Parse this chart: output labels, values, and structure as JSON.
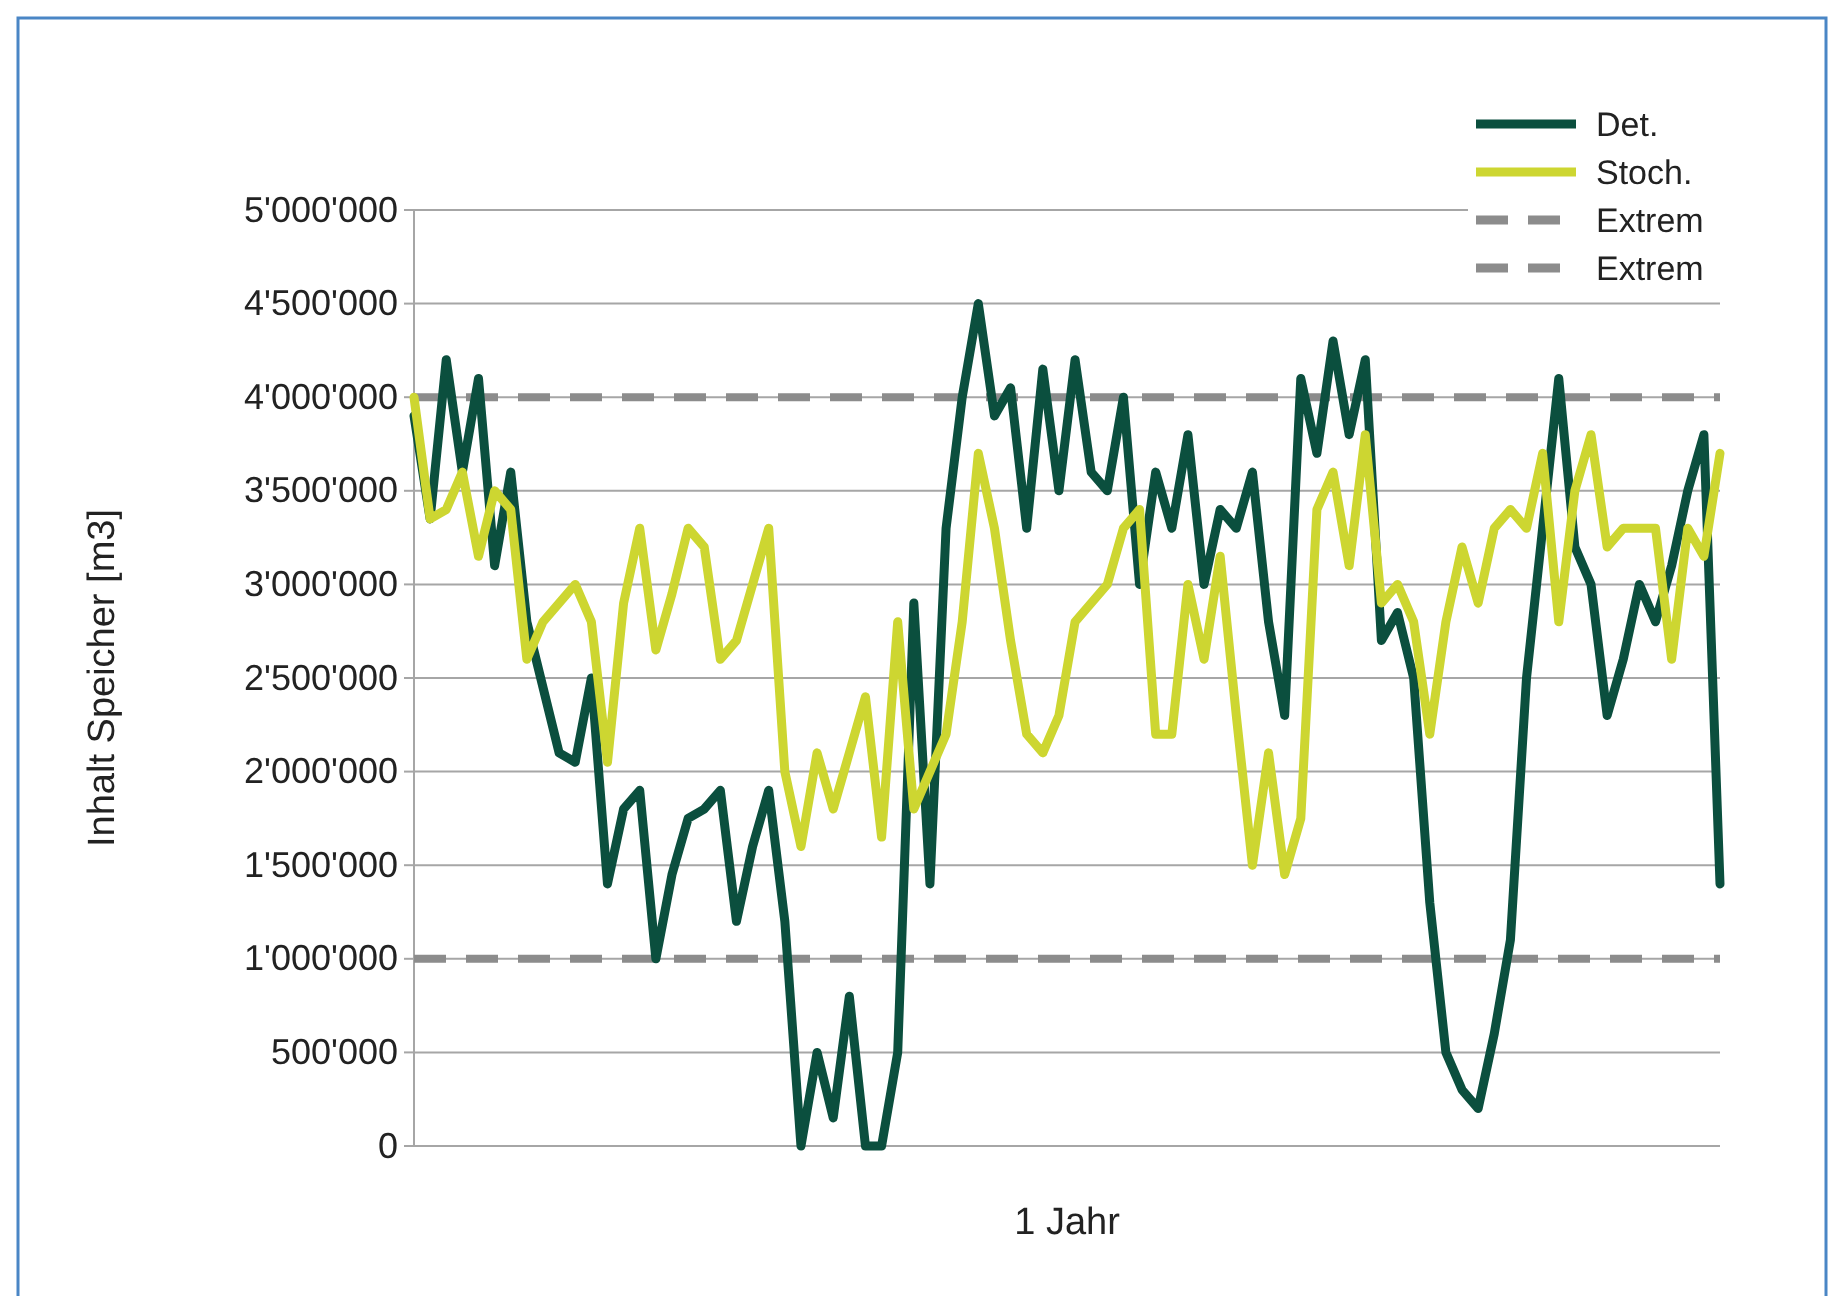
{
  "chart_data": {
    "type": "line",
    "xlabel": "1 Jahr",
    "ylabel": "Inhalt Speicher [m3]",
    "ylim": [
      0,
      5000000
    ],
    "yticks": [
      {
        "value": 0,
        "label": "0"
      },
      {
        "value": 500000,
        "label": "500'000"
      },
      {
        "value": 1000000,
        "label": "1'000'000"
      },
      {
        "value": 1500000,
        "label": "1'500'000"
      },
      {
        "value": 2000000,
        "label": "2'000'000"
      },
      {
        "value": 2500000,
        "label": "2'500'000"
      },
      {
        "value": 3000000,
        "label": "3'000'000"
      },
      {
        "value": 3500000,
        "label": "3'500'000"
      },
      {
        "value": 4000000,
        "label": "4'000'000"
      },
      {
        "value": 4500000,
        "label": "4'500'000"
      },
      {
        "value": 5000000,
        "label": "5'000'000"
      }
    ],
    "grid": "y",
    "legend": "top right",
    "tick_labels": "y",
    "marker": "none",
    "categories": [
      null,
      null,
      null,
      null,
      null,
      null,
      null,
      null,
      null,
      null,
      null,
      null,
      null,
      null,
      null,
      null,
      null,
      null,
      null,
      null,
      null,
      null,
      null,
      null,
      null,
      null,
      null,
      null,
      null,
      null,
      null,
      null,
      null,
      null,
      null,
      null,
      null,
      null,
      null,
      null,
      null,
      null,
      null,
      null,
      null,
      null,
      null,
      null,
      null,
      null,
      null,
      null,
      null,
      null,
      null,
      null,
      null,
      null,
      null,
      null,
      null,
      null,
      null,
      null,
      null,
      null,
      null,
      null,
      null,
      null,
      null,
      null,
      null,
      null,
      null,
      null,
      null,
      null,
      null,
      null,
      null,
      null
    ],
    "series": [
      {
        "name": "Det.",
        "color": "#0b4f3e",
        "line_style": "solid",
        "values": [
          3900000,
          3350000,
          4200000,
          3600000,
          4100000,
          3100000,
          3600000,
          2800000,
          2450000,
          2100000,
          2050000,
          2500000,
          1400000,
          1800000,
          1900000,
          1000000,
          1450000,
          1750000,
          1800000,
          1900000,
          1200000,
          1600000,
          1900000,
          1200000,
          0,
          500000,
          150000,
          800000,
          0,
          0,
          500000,
          2900000,
          1400000,
          3300000,
          4000000,
          4500000,
          3900000,
          4050000,
          3300000,
          4150000,
          3500000,
          4200000,
          3600000,
          3500000,
          4000000,
          3000000,
          3600000,
          3300000,
          3800000,
          3000000,
          3400000,
          3300000,
          3600000,
          2800000,
          2300000,
          4100000,
          3700000,
          4300000,
          3800000,
          4200000,
          2700000,
          2850000,
          2500000,
          1300000,
          500000,
          300000,
          200000,
          600000,
          1100000,
          2500000,
          3300000,
          4100000,
          3200000,
          3000000,
          2300000,
          2600000,
          3000000,
          2800000,
          3100000,
          3500000,
          3800000,
          1400000
        ]
      },
      {
        "name": "Stoch.",
        "color": "#cdd631",
        "line_style": "solid",
        "values": [
          4000000,
          3350000,
          3400000,
          3600000,
          3150000,
          3500000,
          3400000,
          2600000,
          2800000,
          2900000,
          3000000,
          2800000,
          2050000,
          2900000,
          3300000,
          2650000,
          2950000,
          3300000,
          3200000,
          2600000,
          2700000,
          3000000,
          3300000,
          2000000,
          1600000,
          2100000,
          1800000,
          2100000,
          2400000,
          1650000,
          2800000,
          1800000,
          2000000,
          2200000,
          2800000,
          3700000,
          3300000,
          2700000,
          2200000,
          2100000,
          2300000,
          2800000,
          2900000,
          3000000,
          3300000,
          3400000,
          2200000,
          2200000,
          3000000,
          2600000,
          3150000,
          2300000,
          1500000,
          2100000,
          1450000,
          1750000,
          3400000,
          3600000,
          3100000,
          3800000,
          2900000,
          3000000,
          2800000,
          2200000,
          2800000,
          3200000,
          2900000,
          3300000,
          3400000,
          3300000,
          3700000,
          2800000,
          3500000,
          3800000,
          3200000,
          3300000,
          3300000,
          3300000,
          2600000,
          3300000,
          3150000,
          3700000
        ]
      },
      {
        "name": "Extrem",
        "color": "#8c8c8c",
        "line_style": "dashed",
        "values": [
          4000000,
          4000000,
          4000000,
          4000000,
          4000000,
          4000000,
          4000000,
          4000000,
          4000000,
          4000000,
          4000000,
          4000000,
          4000000,
          4000000,
          4000000,
          4000000,
          4000000,
          4000000,
          4000000,
          4000000,
          4000000,
          4000000,
          4000000,
          4000000,
          4000000,
          4000000,
          4000000,
          4000000,
          4000000,
          4000000,
          4000000,
          4000000,
          4000000,
          4000000,
          4000000,
          4000000,
          4000000,
          4000000,
          4000000,
          4000000,
          4000000,
          4000000,
          4000000,
          4000000,
          4000000,
          4000000,
          4000000,
          4000000,
          4000000,
          4000000,
          4000000,
          4000000,
          4000000,
          4000000,
          4000000,
          4000000,
          4000000,
          4000000,
          4000000,
          4000000,
          4000000,
          4000000,
          4000000,
          4000000,
          4000000,
          4000000,
          4000000,
          4000000,
          4000000,
          4000000,
          4000000,
          4000000,
          4000000,
          4000000,
          4000000,
          4000000,
          4000000,
          4000000,
          4000000,
          4000000,
          4000000,
          4000000
        ]
      },
      {
        "name": "Extrem",
        "color": "#8c8c8c",
        "line_style": "dashed",
        "values": [
          1000000,
          1000000,
          1000000,
          1000000,
          1000000,
          1000000,
          1000000,
          1000000,
          1000000,
          1000000,
          1000000,
          1000000,
          1000000,
          1000000,
          1000000,
          1000000,
          1000000,
          1000000,
          1000000,
          1000000,
          1000000,
          1000000,
          1000000,
          1000000,
          1000000,
          1000000,
          1000000,
          1000000,
          1000000,
          1000000,
          1000000,
          1000000,
          1000000,
          1000000,
          1000000,
          1000000,
          1000000,
          1000000,
          1000000,
          1000000,
          1000000,
          1000000,
          1000000,
          1000000,
          1000000,
          1000000,
          1000000,
          1000000,
          1000000,
          1000000,
          1000000,
          1000000,
          1000000,
          1000000,
          1000000,
          1000000,
          1000000,
          1000000,
          1000000,
          1000000,
          1000000,
          1000000,
          1000000,
          1000000,
          1000000,
          1000000,
          1000000,
          1000000,
          1000000,
          1000000,
          1000000,
          1000000,
          1000000,
          1000000,
          1000000,
          1000000,
          1000000,
          1000000,
          1000000,
          1000000,
          1000000,
          1000000
        ]
      }
    ]
  }
}
